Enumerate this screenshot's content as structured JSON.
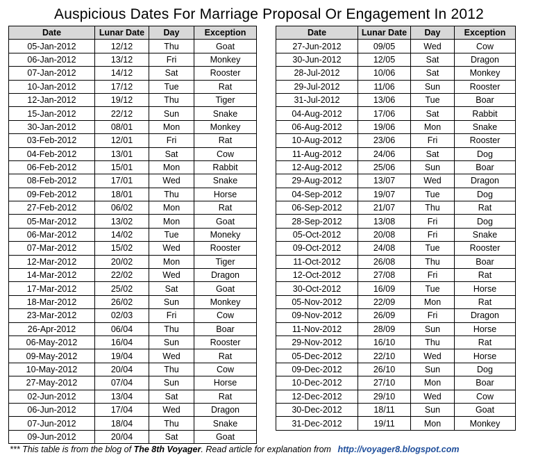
{
  "title": "Auspicious Dates For Marriage Proposal Or Engagement In 2012",
  "columns": [
    "Date",
    "Lunar Date",
    "Day",
    "Exception"
  ],
  "left_rows": [
    [
      "05-Jan-2012",
      "12/12",
      "Thu",
      "Goat"
    ],
    [
      "06-Jan-2012",
      "13/12",
      "Fri",
      "Monkey"
    ],
    [
      "07-Jan-2012",
      "14/12",
      "Sat",
      "Rooster"
    ],
    [
      "10-Jan-2012",
      "17/12",
      "Tue",
      "Rat"
    ],
    [
      "12-Jan-2012",
      "19/12",
      "Thu",
      "Tiger"
    ],
    [
      "15-Jan-2012",
      "22/12",
      "Sun",
      "Snake"
    ],
    [
      "30-Jan-2012",
      "08/01",
      "Mon",
      "Monkey"
    ],
    [
      "03-Feb-2012",
      "12/01",
      "Fri",
      "Rat"
    ],
    [
      "04-Feb-2012",
      "13/01",
      "Sat",
      "Cow"
    ],
    [
      "06-Feb-2012",
      "15/01",
      "Mon",
      "Rabbit"
    ],
    [
      "08-Feb-2012",
      "17/01",
      "Wed",
      "Snake"
    ],
    [
      "09-Feb-2012",
      "18/01",
      "Thu",
      "Horse"
    ],
    [
      "27-Feb-2012",
      "06/02",
      "Mon",
      "Rat"
    ],
    [
      "05-Mar-2012",
      "13/02",
      "Mon",
      "Goat"
    ],
    [
      "06-Mar-2012",
      "14/02",
      "Tue",
      "Moneky"
    ],
    [
      "07-Mar-2012",
      "15/02",
      "Wed",
      "Rooster"
    ],
    [
      "12-Mar-2012",
      "20/02",
      "Mon",
      "Tiger"
    ],
    [
      "14-Mar-2012",
      "22/02",
      "Wed",
      "Dragon"
    ],
    [
      "17-Mar-2012",
      "25/02",
      "Sat",
      "Goat"
    ],
    [
      "18-Mar-2012",
      "26/02",
      "Sun",
      "Monkey"
    ],
    [
      "23-Mar-2012",
      "02/03",
      "Fri",
      "Cow"
    ],
    [
      "26-Apr-2012",
      "06/04",
      "Thu",
      "Boar"
    ],
    [
      "06-May-2012",
      "16/04",
      "Sun",
      "Rooster"
    ],
    [
      "09-May-2012",
      "19/04",
      "Wed",
      "Rat"
    ],
    [
      "10-May-2012",
      "20/04",
      "Thu",
      "Cow"
    ],
    [
      "27-May-2012",
      "07/04",
      "Sun",
      "Horse"
    ],
    [
      "02-Jun-2012",
      "13/04",
      "Sat",
      "Rat"
    ],
    [
      "06-Jun-2012",
      "17/04",
      "Wed",
      "Dragon"
    ],
    [
      "07-Jun-2012",
      "18/04",
      "Thu",
      "Snake"
    ],
    [
      "09-Jun-2012",
      "20/04",
      "Sat",
      "Goat"
    ]
  ],
  "right_rows": [
    [
      "27-Jun-2012",
      "09/05",
      "Wed",
      "Cow"
    ],
    [
      "30-Jun-2012",
      "12/05",
      "Sat",
      "Dragon"
    ],
    [
      "28-Jul-2012",
      "10/06",
      "Sat",
      "Monkey"
    ],
    [
      "29-Jul-2012",
      "11/06",
      "Sun",
      "Rooster"
    ],
    [
      "31-Jul-2012",
      "13/06",
      "Tue",
      "Boar"
    ],
    [
      "04-Aug-2012",
      "17/06",
      "Sat",
      "Rabbit"
    ],
    [
      "06-Aug-2012",
      "19/06",
      "Mon",
      "Snake"
    ],
    [
      "10-Aug-2012",
      "23/06",
      "Fri",
      "Rooster"
    ],
    [
      "11-Aug-2012",
      "24/06",
      "Sat",
      "Dog"
    ],
    [
      "12-Aug-2012",
      "25/06",
      "Sun",
      "Boar"
    ],
    [
      "29-Aug-2012",
      "13/07",
      "Wed",
      "Dragon"
    ],
    [
      "04-Sep-2012",
      "19/07",
      "Tue",
      "Dog"
    ],
    [
      "06-Sep-2012",
      "21/07",
      "Thu",
      "Rat"
    ],
    [
      "28-Sep-2012",
      "13/08",
      "Fri",
      "Dog"
    ],
    [
      "05-Oct-2012",
      "20/08",
      "Fri",
      "Snake"
    ],
    [
      "09-Oct-2012",
      "24/08",
      "Tue",
      "Rooster"
    ],
    [
      "11-Oct-2012",
      "26/08",
      "Thu",
      "Boar"
    ],
    [
      "12-Oct-2012",
      "27/08",
      "Fri",
      "Rat"
    ],
    [
      "30-Oct-2012",
      "16/09",
      "Tue",
      "Horse"
    ],
    [
      "05-Nov-2012",
      "22/09",
      "Mon",
      "Rat"
    ],
    [
      "09-Nov-2012",
      "26/09",
      "Fri",
      "Dragon"
    ],
    [
      "11-Nov-2012",
      "28/09",
      "Sun",
      "Horse"
    ],
    [
      "29-Nov-2012",
      "16/10",
      "Thu",
      "Rat"
    ],
    [
      "05-Dec-2012",
      "22/10",
      "Wed",
      "Horse"
    ],
    [
      "09-Dec-2012",
      "26/10",
      "Sun",
      "Dog"
    ],
    [
      "10-Dec-2012",
      "27/10",
      "Mon",
      "Boar"
    ],
    [
      "12-Dec-2012",
      "29/10",
      "Wed",
      "Cow"
    ],
    [
      "30-Dec-2012",
      "18/11",
      "Sun",
      "Goat"
    ],
    [
      "31-Dec-2012",
      "19/11",
      "Mon",
      "Monkey"
    ]
  ],
  "footer": {
    "prefix": "*** This table is from the blog of",
    "blog_name": "The 8th Voyager",
    "suffix": ". Read article for explanation from",
    "link": "http://voyager8.blogspot.com"
  },
  "colors": {
    "header_bg": "#d8d8d8",
    "link": "#1f4e9b"
  }
}
